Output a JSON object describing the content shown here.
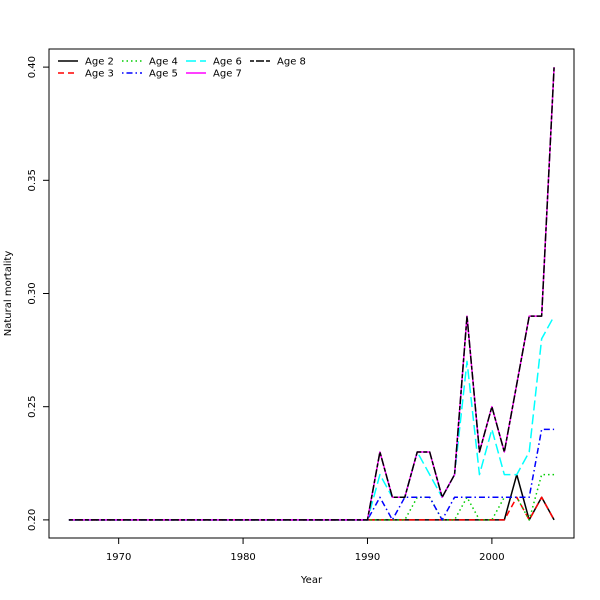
{
  "chart_data": {
    "type": "line",
    "title": "",
    "xlabel": "Year",
    "ylabel": "Natural mortality",
    "xlim": [
      1964.4,
      2006.6
    ],
    "ylim": [
      0.192,
      0.408
    ],
    "x_ticks": [
      1970,
      1980,
      1990,
      2000
    ],
    "x_tick_labels": [
      "1970",
      "1980",
      "1990",
      "2000"
    ],
    "y_ticks": [
      0.2,
      0.25,
      0.3,
      0.35,
      0.4
    ],
    "y_tick_labels": [
      "0.20",
      "0.25",
      "0.30",
      "0.35",
      "0.40"
    ],
    "grid": false,
    "legend_position": "top-left",
    "x": [
      1966,
      1967,
      1968,
      1969,
      1970,
      1971,
      1972,
      1973,
      1974,
      1975,
      1976,
      1977,
      1978,
      1979,
      1980,
      1981,
      1982,
      1983,
      1984,
      1985,
      1986,
      1987,
      1988,
      1989,
      1990,
      1991,
      1992,
      1993,
      1994,
      1995,
      1996,
      1997,
      1998,
      1999,
      2000,
      2001,
      2002,
      2003,
      2004,
      2005
    ],
    "series": [
      {
        "name": "Age 2",
        "color": "#000000",
        "dash": "solid",
        "values": [
          0.2,
          0.2,
          0.2,
          0.2,
          0.2,
          0.2,
          0.2,
          0.2,
          0.2,
          0.2,
          0.2,
          0.2,
          0.2,
          0.2,
          0.2,
          0.2,
          0.2,
          0.2,
          0.2,
          0.2,
          0.2,
          0.2,
          0.2,
          0.2,
          0.2,
          0.2,
          0.2,
          0.2,
          0.2,
          0.2,
          0.2,
          0.2,
          0.2,
          0.2,
          0.2,
          0.2,
          0.22,
          0.2,
          0.21,
          0.2
        ]
      },
      {
        "name": "Age 3",
        "color": "#ff0000",
        "dash": "dashed",
        "values": [
          0.2,
          0.2,
          0.2,
          0.2,
          0.2,
          0.2,
          0.2,
          0.2,
          0.2,
          0.2,
          0.2,
          0.2,
          0.2,
          0.2,
          0.2,
          0.2,
          0.2,
          0.2,
          0.2,
          0.2,
          0.2,
          0.2,
          0.2,
          0.2,
          0.2,
          0.2,
          0.2,
          0.2,
          0.2,
          0.2,
          0.2,
          0.2,
          0.2,
          0.2,
          0.2,
          0.2,
          0.21,
          0.2,
          0.21,
          0.2
        ]
      },
      {
        "name": "Age 4",
        "color": "#00cd00",
        "dash": "dotted",
        "values": [
          0.2,
          0.2,
          0.2,
          0.2,
          0.2,
          0.2,
          0.2,
          0.2,
          0.2,
          0.2,
          0.2,
          0.2,
          0.2,
          0.2,
          0.2,
          0.2,
          0.2,
          0.2,
          0.2,
          0.2,
          0.2,
          0.2,
          0.2,
          0.2,
          0.2,
          0.2,
          0.2,
          0.2,
          0.21,
          0.21,
          0.2,
          0.2,
          0.21,
          0.2,
          0.2,
          0.21,
          0.21,
          0.2,
          0.22,
          0.22
        ]
      },
      {
        "name": "Age 5",
        "color": "#0000ff",
        "dash": "dotdash",
        "values": [
          0.2,
          0.2,
          0.2,
          0.2,
          0.2,
          0.2,
          0.2,
          0.2,
          0.2,
          0.2,
          0.2,
          0.2,
          0.2,
          0.2,
          0.2,
          0.2,
          0.2,
          0.2,
          0.2,
          0.2,
          0.2,
          0.2,
          0.2,
          0.2,
          0.2,
          0.21,
          0.2,
          0.21,
          0.21,
          0.21,
          0.2,
          0.21,
          0.21,
          0.21,
          0.21,
          0.21,
          0.21,
          0.21,
          0.24,
          0.24
        ]
      },
      {
        "name": "Age 6",
        "color": "#00ffff",
        "dash": "longdash",
        "values": [
          0.2,
          0.2,
          0.2,
          0.2,
          0.2,
          0.2,
          0.2,
          0.2,
          0.2,
          0.2,
          0.2,
          0.2,
          0.2,
          0.2,
          0.2,
          0.2,
          0.2,
          0.2,
          0.2,
          0.2,
          0.2,
          0.2,
          0.2,
          0.2,
          0.2,
          0.22,
          0.21,
          0.21,
          0.23,
          0.22,
          0.21,
          0.22,
          0.27,
          0.22,
          0.24,
          0.22,
          0.22,
          0.23,
          0.28,
          0.29
        ]
      },
      {
        "name": "Age 7",
        "color": "#ff00ff",
        "dash": "solid",
        "values": [
          0.2,
          0.2,
          0.2,
          0.2,
          0.2,
          0.2,
          0.2,
          0.2,
          0.2,
          0.2,
          0.2,
          0.2,
          0.2,
          0.2,
          0.2,
          0.2,
          0.2,
          0.2,
          0.2,
          0.2,
          0.2,
          0.2,
          0.2,
          0.2,
          0.2,
          0.23,
          0.21,
          0.21,
          0.23,
          0.23,
          0.21,
          0.22,
          0.29,
          0.23,
          0.25,
          0.23,
          0.26,
          0.29,
          0.29,
          0.4
        ]
      },
      {
        "name": "Age 8",
        "color": "#000000",
        "dash": "twodash",
        "values": [
          0.2,
          0.2,
          0.2,
          0.2,
          0.2,
          0.2,
          0.2,
          0.2,
          0.2,
          0.2,
          0.2,
          0.2,
          0.2,
          0.2,
          0.2,
          0.2,
          0.2,
          0.2,
          0.2,
          0.2,
          0.2,
          0.2,
          0.2,
          0.2,
          0.2,
          0.23,
          0.21,
          0.21,
          0.23,
          0.23,
          0.21,
          0.22,
          0.29,
          0.23,
          0.25,
          0.23,
          0.26,
          0.29,
          0.29,
          0.4
        ]
      }
    ]
  }
}
